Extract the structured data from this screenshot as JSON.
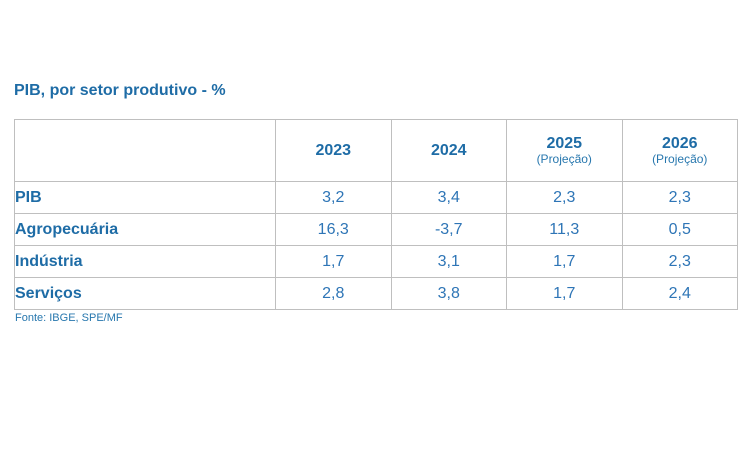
{
  "title": "PIB, por setor produtivo - %",
  "source": "Fonte: IBGE, SPE/MF",
  "colors": {
    "heading_blue": "#1E6CA6",
    "value_blue": "#2E75B6",
    "note_blue": "#2777AE",
    "border_gray": "#BFBFBF",
    "background": "#FFFFFF"
  },
  "table": {
    "corner_label": "",
    "columns": [
      {
        "year": "2023",
        "note": ""
      },
      {
        "year": "2024",
        "note": ""
      },
      {
        "year": "2025",
        "note": "(Projeção)"
      },
      {
        "year": "2026",
        "note": "(Projeção)"
      }
    ],
    "rows": [
      {
        "label": "PIB",
        "values": [
          "3,2",
          "3,4",
          "2,3",
          "2,3"
        ]
      },
      {
        "label": "Agropecuária",
        "values": [
          "16,3",
          "-3,7",
          "11,3",
          "0,5"
        ]
      },
      {
        "label": "Indústria",
        "values": [
          "1,7",
          "3,1",
          "1,7",
          "2,3"
        ]
      },
      {
        "label": "Serviços",
        "values": [
          "2,8",
          "3,8",
          "1,7",
          "2,4"
        ]
      }
    ]
  },
  "chart_data": {
    "type": "table",
    "title": "PIB, por setor produtivo - %",
    "unit": "%",
    "columns": [
      "",
      "2023",
      "2024",
      "2025 (Projeção)",
      "2026 (Projeção)"
    ],
    "rows": [
      [
        "PIB",
        3.2,
        3.4,
        2.3,
        2.3
      ],
      [
        "Agropecuária",
        16.3,
        -3.7,
        11.3,
        0.5
      ],
      [
        "Indústria",
        1.7,
        3.1,
        1.7,
        2.3
      ],
      [
        "Serviços",
        2.8,
        3.8,
        1.7,
        2.4
      ]
    ],
    "source": "Fonte: IBGE, SPE/MF"
  }
}
